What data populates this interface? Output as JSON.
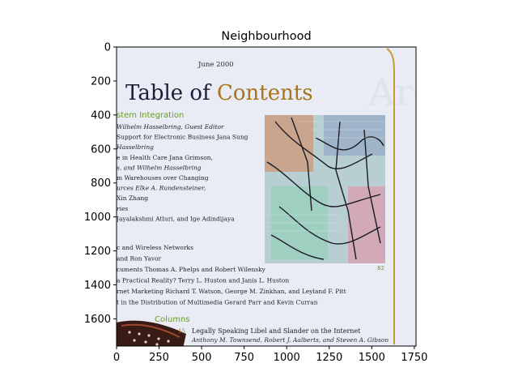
{
  "chart_data": {
    "type": "image",
    "title": "Neighbourhood",
    "xlim": [
      0,
      1760
    ],
    "ylim": [
      1760,
      0
    ],
    "x_ticks": [
      0,
      250,
      500,
      750,
      1000,
      1250,
      1500,
      1750
    ],
    "y_ticks": [
      0,
      200,
      400,
      600,
      800,
      1000,
      1200,
      1400,
      1600
    ],
    "image_extent": {
      "x0": 0,
      "x1": 1800,
      "y0": 0,
      "y1": 1800
    }
  },
  "document": {
    "date": "June 2000",
    "heading_part1": "Table of ",
    "heading_part2": "Contents",
    "section1": "stem Integration",
    "lines": [
      "Wilhelm Hasselbring, Guest Editor",
      "Support for Electronic Business  Jana Sung",
      "Hasselbring",
      "e in Health Care  Jana Grimson,",
      "s, and Wilhelm Hasselbring",
      "m Warehouses over Changing",
      "urces  Elke A. Rundensteiner,",
      "Xin Zhang",
      "ries",
      "Jayalakshmi Atluri, and Ige Adindijaya"
    ],
    "lines2": [
      "c and Wireless Networks",
      "and Ron Yavor",
      "cuments  Thomas A. Phelps and Robert Wilensky",
      "a Practical Reality?  Terry L. Huston and Janis L. Huston",
      "rnet Marketing  Richard T. Watson, George M. Zinkhan, and Leyland F. Pitt",
      "t in the Distribution of Multimedia  Gerard Parr and Kevin Curran"
    ],
    "columns_label": "Columns",
    "column_page": "15",
    "column_title": "Legally Speaking  Libel and Slander on the Internet",
    "column_authors": "Anthony M. Townsend, Robert J. Aalberts, and Steven A. Gibson",
    "photo_page": "82"
  },
  "colors": {
    "paper": "#e9ecf4",
    "heading_dark": "#1c1c36",
    "heading_gold": "#a8741a",
    "green": "#6a9a2c",
    "gold_line": "#c99a3b"
  }
}
